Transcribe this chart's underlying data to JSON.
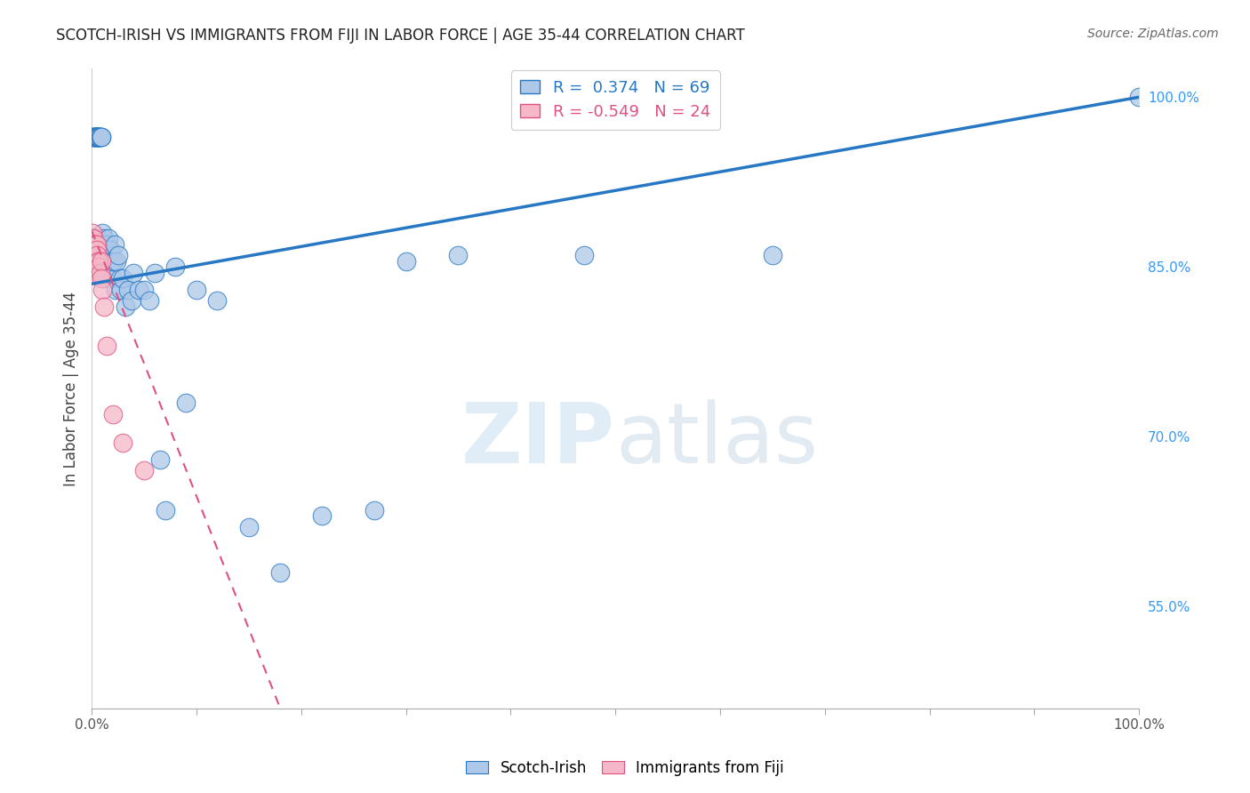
{
  "title": "SCOTCH-IRISH VS IMMIGRANTS FROM FIJI IN LABOR FORCE | AGE 35-44 CORRELATION CHART",
  "source": "Source: ZipAtlas.com",
  "ylabel": "In Labor Force | Age 35-44",
  "legend_label1": "Scotch-Irish",
  "legend_label2": "Immigrants from Fiji",
  "R1": 0.374,
  "N1": 69,
  "R2": -0.549,
  "N2": 24,
  "blue_color": "#adc8e8",
  "pink_color": "#f4b8c8",
  "line_blue": "#2778c4",
  "line_pink": "#e05080",
  "scotch_irish_x": [
    0.001,
    0.002,
    0.002,
    0.003,
    0.003,
    0.003,
    0.004,
    0.004,
    0.005,
    0.005,
    0.005,
    0.006,
    0.006,
    0.007,
    0.007,
    0.007,
    0.008,
    0.008,
    0.009,
    0.009,
    0.01,
    0.01,
    0.01,
    0.011,
    0.011,
    0.012,
    0.012,
    0.013,
    0.013,
    0.014,
    0.015,
    0.015,
    0.016,
    0.017,
    0.018,
    0.018,
    0.019,
    0.02,
    0.021,
    0.022,
    0.023,
    0.024,
    0.025,
    0.027,
    0.028,
    0.03,
    0.032,
    0.035,
    0.038,
    0.04,
    0.045,
    0.05,
    0.055,
    0.06,
    0.065,
    0.07,
    0.08,
    0.09,
    0.1,
    0.12,
    0.15,
    0.18,
    0.22,
    0.27,
    0.3,
    0.35,
    0.47,
    0.65,
    1.0
  ],
  "scotch_irish_y": [
    0.965,
    0.965,
    0.965,
    0.965,
    0.965,
    0.965,
    0.965,
    0.965,
    0.965,
    0.965,
    0.965,
    0.965,
    0.965,
    0.965,
    0.965,
    0.965,
    0.965,
    0.965,
    0.965,
    0.965,
    0.88,
    0.86,
    0.855,
    0.87,
    0.84,
    0.875,
    0.86,
    0.87,
    0.855,
    0.855,
    0.87,
    0.86,
    0.875,
    0.86,
    0.865,
    0.855,
    0.84,
    0.855,
    0.855,
    0.87,
    0.83,
    0.855,
    0.86,
    0.84,
    0.83,
    0.84,
    0.815,
    0.83,
    0.82,
    0.845,
    0.83,
    0.83,
    0.82,
    0.845,
    0.68,
    0.635,
    0.85,
    0.73,
    0.83,
    0.82,
    0.62,
    0.58,
    0.63,
    0.635,
    0.855,
    0.86,
    0.86,
    0.86,
    1.0
  ],
  "fiji_x": [
    0.001,
    0.001,
    0.002,
    0.002,
    0.003,
    0.003,
    0.004,
    0.004,
    0.004,
    0.005,
    0.005,
    0.005,
    0.006,
    0.007,
    0.007,
    0.008,
    0.009,
    0.009,
    0.01,
    0.012,
    0.014,
    0.02,
    0.03,
    0.05
  ],
  "fiji_y": [
    0.88,
    0.875,
    0.875,
    0.87,
    0.87,
    0.865,
    0.87,
    0.865,
    0.86,
    0.87,
    0.865,
    0.86,
    0.855,
    0.855,
    0.85,
    0.845,
    0.855,
    0.84,
    0.83,
    0.815,
    0.78,
    0.72,
    0.695,
    0.67
  ],
  "xmin": 0.0,
  "xmax": 1.0,
  "ymin": 0.46,
  "ymax": 1.025,
  "x_ticks": [
    0.0,
    0.1,
    0.2,
    0.3,
    0.4,
    0.5,
    0.6,
    0.7,
    0.8,
    0.9,
    1.0
  ],
  "y_ticks_right": [
    0.55,
    0.7,
    0.85,
    1.0
  ],
  "y_tick_labels_right": [
    "55.0%",
    "70.0%",
    "85.0%",
    "100.0%"
  ],
  "watermark_zip": "ZIP",
  "watermark_atlas": "atlas",
  "grid_color": "#cccccc",
  "grid_linestyle": "--"
}
